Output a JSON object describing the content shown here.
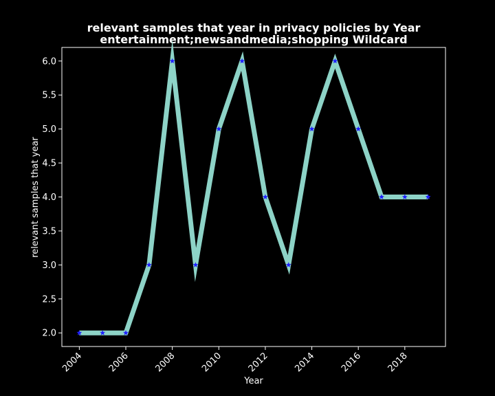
{
  "chart_data": {
    "type": "line",
    "title": "relevant samples that year in privacy policies by Year",
    "subtitle": "entertainment;newsandmedia;shopping Wildcard",
    "xlabel": "Year",
    "ylabel": "relevant samples that year",
    "x": [
      2004,
      2005,
      2006,
      2007,
      2008,
      2009,
      2010,
      2011,
      2012,
      2013,
      2014,
      2015,
      2016,
      2017,
      2018,
      2019
    ],
    "series": [
      {
        "values": [
          2,
          2,
          2,
          3,
          6,
          3,
          5,
          6,
          4,
          3,
          5,
          6,
          5,
          4,
          4,
          4
        ]
      }
    ],
    "xlim": [
      2003.25,
      2019.75
    ],
    "ylim": [
      1.8,
      6.2
    ],
    "xticks": [
      "2004",
      "2006",
      "2008",
      "2010",
      "2012",
      "2014",
      "2016",
      "2018"
    ],
    "yticks": [
      "2.0",
      "2.5",
      "3.0",
      "3.5",
      "4.0",
      "4.5",
      "5.0",
      "5.5",
      "6.0"
    ],
    "grid": false,
    "legend": "none",
    "colors": {
      "background": "#000000",
      "line": "#8dd3c7",
      "marker": "#1f1fff",
      "axes": "#ffffff",
      "text": "#ffffff"
    },
    "marker": "star"
  }
}
